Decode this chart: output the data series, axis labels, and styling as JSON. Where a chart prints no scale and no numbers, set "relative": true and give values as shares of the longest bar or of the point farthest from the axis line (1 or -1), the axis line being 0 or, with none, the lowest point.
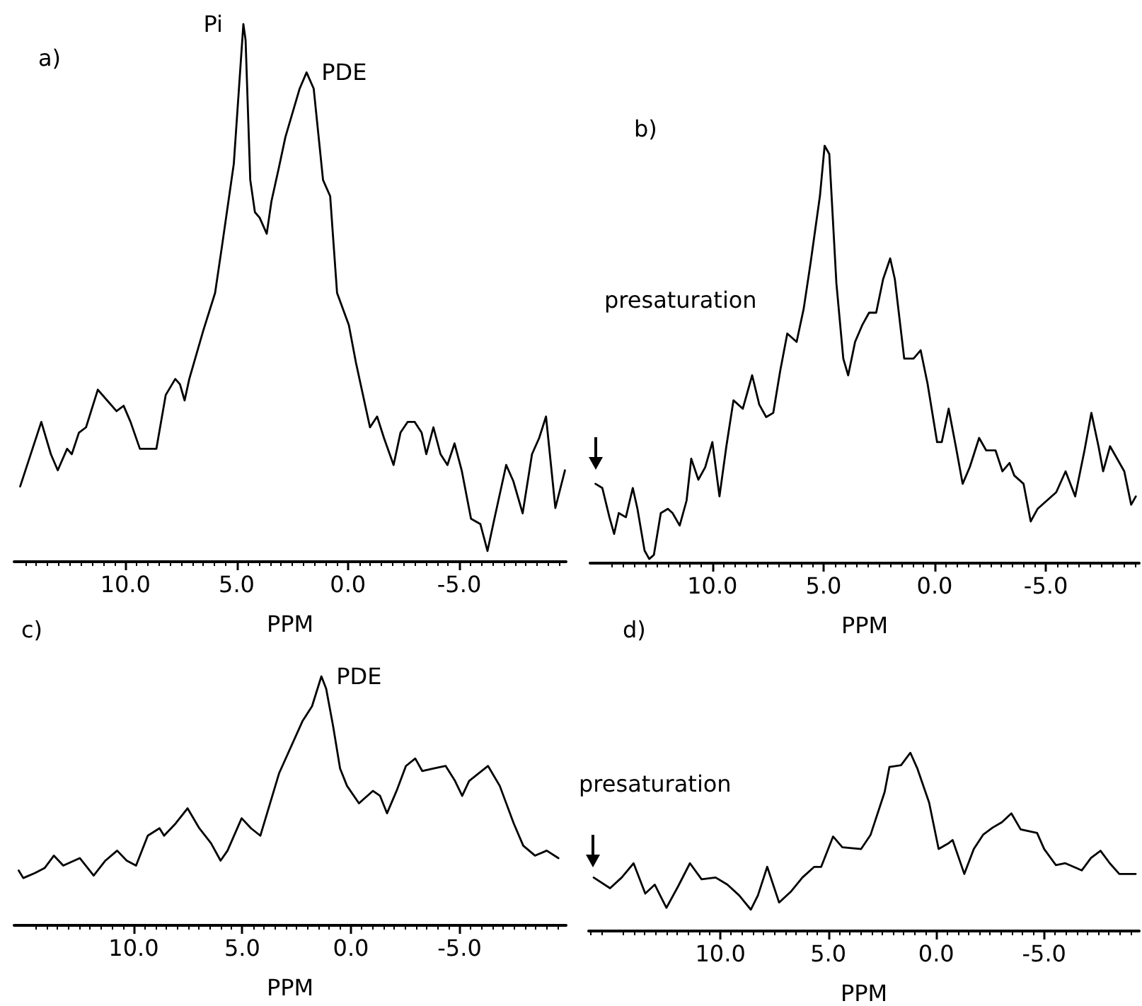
{
  "chart_data": [
    {
      "type": "line",
      "title": "a)",
      "xlabel": "PPM",
      "relative": true,
      "marker": "none",
      "xlim": [
        15.0,
        -9.8
      ],
      "xticks": [
        {
          "value": 10,
          "label": "10.0"
        },
        {
          "value": 5,
          "label": "5.0"
        },
        {
          "value": 0,
          "label": "0.0"
        },
        {
          "value": -5,
          "label": "-5.0"
        }
      ],
      "annotations": [
        {
          "text": "Pi",
          "x": 4.7,
          "y": 1.0
        },
        {
          "text": "PDE",
          "x": 1.86,
          "y": 0.91
        }
      ],
      "x": [
        14.73,
        13.78,
        13.35,
        13.04,
        12.62,
        12.41,
        12.09,
        11.77,
        11.24,
        10.82,
        10.4,
        10.08,
        9.77,
        9.35,
        8.61,
        8.19,
        7.76,
        7.55,
        7.34,
        7.13,
        6.5,
        5.97,
        5.65,
        5.13,
        4.7,
        4.6,
        4.39,
        4.18,
        3.97,
        3.65,
        3.44,
        3.12,
        2.81,
        2.17,
        1.86,
        1.54,
        1.12,
        0.8,
        0.49,
        -0.04,
        -0.36,
        -0.99,
        -1.31,
        -1.62,
        -2.05,
        -2.36,
        -2.68,
        -3.0,
        -3.31,
        -3.52,
        -3.84,
        -4.16,
        -4.47,
        -4.79,
        -5.11,
        -5.53,
        -5.95,
        -6.27,
        -6.58,
        -7.11,
        -7.43,
        -7.85,
        -8.27,
        -8.59,
        -8.9,
        -9.32,
        -9.75
      ],
      "series": [
        {
          "color": "#000000",
          "values": [
            0.14,
            0.26,
            0.2,
            0.17,
            0.21,
            0.2,
            0.24,
            0.25,
            0.32,
            0.3,
            0.28,
            0.29,
            0.26,
            0.21,
            0.21,
            0.31,
            0.34,
            0.33,
            0.3,
            0.34,
            0.43,
            0.5,
            0.59,
            0.74,
            1.0,
            0.97,
            0.71,
            0.65,
            0.64,
            0.61,
            0.67,
            0.73,
            0.79,
            0.88,
            0.91,
            0.88,
            0.71,
            0.68,
            0.5,
            0.44,
            0.37,
            0.25,
            0.27,
            0.23,
            0.18,
            0.24,
            0.26,
            0.26,
            0.24,
            0.2,
            0.25,
            0.2,
            0.18,
            0.22,
            0.17,
            0.08,
            0.07,
            0.02,
            0.08,
            0.18,
            0.15,
            0.09,
            0.2,
            0.23,
            0.27,
            0.1,
            0.17
          ]
        }
      ]
    },
    {
      "type": "line",
      "title": "b)",
      "xlabel": "PPM",
      "relative": true,
      "marker": "none",
      "xlim": [
        15.5,
        -9.2
      ],
      "xticks": [
        {
          "value": 10,
          "label": "10.0"
        },
        {
          "value": 5,
          "label": "5.0"
        },
        {
          "value": 0,
          "label": "0.0"
        },
        {
          "value": -5,
          "label": "-5.0"
        }
      ],
      "annotations": [
        "presaturation"
      ],
      "x": [
        15.26,
        14.95,
        14.63,
        14.42,
        14.21,
        13.89,
        13.58,
        13.37,
        13.05,
        12.84,
        12.63,
        12.32,
        12.0,
        11.79,
        11.47,
        11.16,
        10.95,
        10.63,
        10.32,
        10.0,
        9.68,
        9.37,
        9.05,
        8.63,
        8.21,
        7.89,
        7.58,
        7.26,
        6.95,
        6.63,
        6.21,
        5.89,
        5.58,
        5.16,
        4.95,
        4.74,
        4.42,
        4.11,
        3.89,
        3.58,
        3.26,
        2.95,
        2.63,
        2.32,
        2.0,
        1.79,
        1.37,
        0.95,
        0.63,
        0.32,
        -0.11,
        -0.32,
        -0.63,
        -0.95,
        -1.26,
        -1.58,
        -2.0,
        -2.32,
        -2.74,
        -3.05,
        -3.37,
        -3.58,
        -4.0,
        -4.32,
        -4.63,
        -5.05,
        -5.47,
        -5.89,
        -6.32,
        -6.74,
        -7.05,
        -7.37,
        -7.58,
        -7.89,
        -8.21,
        -8.53,
        -8.84,
        -9.05
      ],
      "series": [
        {
          "color": "#000000",
          "values": [
            0.19,
            0.18,
            0.11,
            0.07,
            0.12,
            0.11,
            0.18,
            0.13,
            0.03,
            0.01,
            0.02,
            0.12,
            0.13,
            0.12,
            0.09,
            0.15,
            0.25,
            0.2,
            0.23,
            0.29,
            0.16,
            0.28,
            0.39,
            0.37,
            0.45,
            0.38,
            0.35,
            0.36,
            0.46,
            0.55,
            0.53,
            0.61,
            0.72,
            0.88,
            1.0,
            0.98,
            0.67,
            0.49,
            0.45,
            0.53,
            0.57,
            0.6,
            0.6,
            0.68,
            0.73,
            0.68,
            0.49,
            0.49,
            0.51,
            0.43,
            0.29,
            0.29,
            0.37,
            0.28,
            0.19,
            0.23,
            0.3,
            0.27,
            0.27,
            0.22,
            0.24,
            0.21,
            0.19,
            0.1,
            0.13,
            0.15,
            0.17,
            0.22,
            0.16,
            0.27,
            0.36,
            0.28,
            0.22,
            0.28,
            0.25,
            0.22,
            0.14,
            0.16
          ]
        }
      ]
    },
    {
      "type": "line",
      "title": "c)",
      "xlabel": "PPM",
      "relative": true,
      "marker": "none",
      "xlim": [
        15.5,
        -9.9
      ],
      "xticks": [
        {
          "value": 10,
          "label": "10.0"
        },
        {
          "value": 5,
          "label": "5.0"
        },
        {
          "value": 0,
          "label": "0.0"
        },
        {
          "value": -5,
          "label": "-5.0"
        }
      ],
      "annotations": [
        {
          "text": "PDE",
          "x": 1.36,
          "y": 1.0
        }
      ],
      "x": [
        15.29,
        15.08,
        14.54,
        14.1,
        13.67,
        13.24,
        12.48,
        11.84,
        11.3,
        10.76,
        10.32,
        9.89,
        9.35,
        8.81,
        8.6,
        8.06,
        7.52,
        6.98,
        6.44,
        6.0,
        5.68,
        5.03,
        4.6,
        4.17,
        3.31,
        2.23,
        1.79,
        1.36,
        1.14,
        0.82,
        0.5,
        0.18,
        -0.37,
        -1.01,
        -1.34,
        -1.66,
        -2.1,
        -2.53,
        -2.96,
        -3.28,
        -3.82,
        -4.36,
        -4.79,
        -5.12,
        -5.44,
        -6.31,
        -6.85,
        -7.49,
        -7.93,
        -8.47,
        -9.01,
        -9.55
      ],
      "series": [
        {
          "color": "#000000",
          "values": [
            0.22,
            0.19,
            0.21,
            0.23,
            0.28,
            0.24,
            0.27,
            0.2,
            0.26,
            0.3,
            0.26,
            0.24,
            0.36,
            0.39,
            0.36,
            0.41,
            0.47,
            0.39,
            0.33,
            0.26,
            0.3,
            0.43,
            0.39,
            0.36,
            0.61,
            0.82,
            0.88,
            1.0,
            0.95,
            0.8,
            0.63,
            0.56,
            0.49,
            0.54,
            0.52,
            0.45,
            0.54,
            0.64,
            0.67,
            0.62,
            0.63,
            0.64,
            0.58,
            0.52,
            0.58,
            0.64,
            0.56,
            0.41,
            0.32,
            0.28,
            0.3,
            0.27
          ]
        }
      ]
    },
    {
      "type": "line",
      "title": "d)",
      "xlabel": "PPM",
      "relative": true,
      "marker": "none",
      "xlim": [
        16.1,
        -9.4
      ],
      "xticks": [
        {
          "value": 10,
          "label": "10.0"
        },
        {
          "value": 5,
          "label": "5.0"
        },
        {
          "value": 0,
          "label": "0.0"
        },
        {
          "value": -5,
          "label": "-5.0"
        }
      ],
      "annotations": [
        "presaturation"
      ],
      "x": [
        15.87,
        15.11,
        14.57,
        14.02,
        13.48,
        13.04,
        12.5,
        11.96,
        11.41,
        10.87,
        10.22,
        9.67,
        9.13,
        8.59,
        8.26,
        7.83,
        7.28,
        6.74,
        6.2,
        5.65,
        5.33,
        4.78,
        4.35,
        3.48,
        3.04,
        2.39,
        2.17,
        1.63,
        1.2,
        0.87,
        0.33,
        -0.11,
        -0.54,
        -0.76,
        -1.3,
        -1.74,
        -2.17,
        -2.61,
        -3.04,
        -3.48,
        -3.91,
        -4.67,
        -5.0,
        -5.54,
        -5.98,
        -6.74,
        -7.17,
        -7.61,
        -8.04,
        -8.48,
        -9.24
      ],
      "series": [
        {
          "color": "#000000",
          "values": [
            0.3,
            0.24,
            0.3,
            0.38,
            0.21,
            0.26,
            0.13,
            0.25,
            0.38,
            0.29,
            0.3,
            0.26,
            0.2,
            0.12,
            0.2,
            0.36,
            0.16,
            0.22,
            0.3,
            0.36,
            0.36,
            0.53,
            0.47,
            0.46,
            0.54,
            0.78,
            0.92,
            0.93,
            1.0,
            0.91,
            0.72,
            0.46,
            0.49,
            0.51,
            0.32,
            0.46,
            0.54,
            0.58,
            0.61,
            0.66,
            0.57,
            0.55,
            0.46,
            0.37,
            0.38,
            0.34,
            0.41,
            0.45,
            0.38,
            0.32,
            0.32
          ]
        }
      ]
    }
  ]
}
